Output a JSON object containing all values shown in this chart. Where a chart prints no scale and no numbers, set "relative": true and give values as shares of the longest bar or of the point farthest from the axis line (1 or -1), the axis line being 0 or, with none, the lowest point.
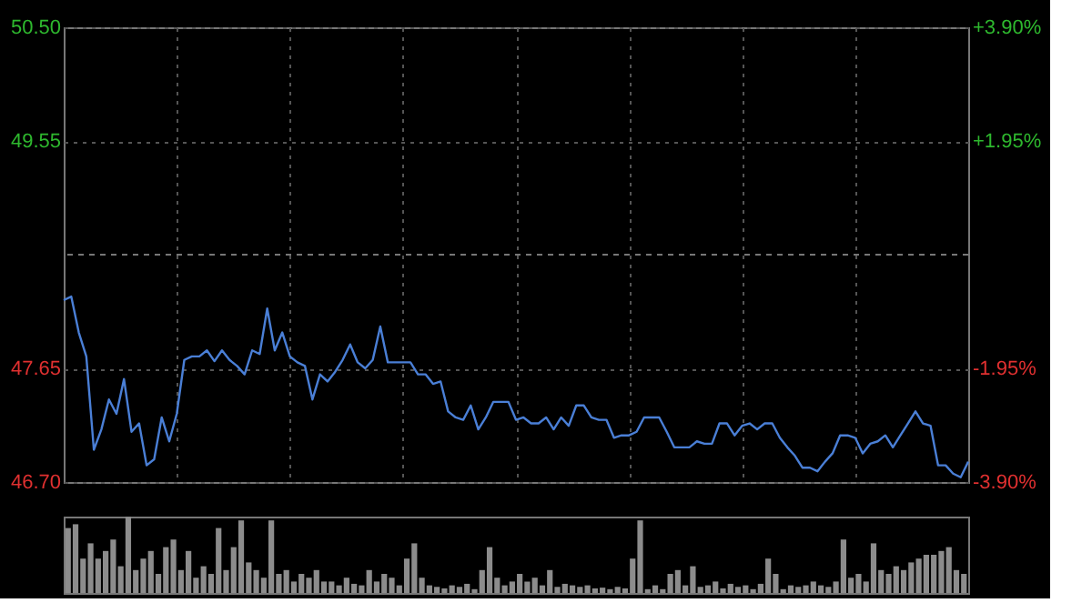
{
  "chart_data": [
    {
      "type": "line",
      "categories": [
        null,
        null,
        null,
        null,
        null,
        null,
        null,
        null,
        null,
        null,
        null,
        null,
        null,
        null,
        null,
        null,
        null,
        null,
        null,
        null,
        null,
        null,
        null,
        null,
        null,
        null,
        null,
        null,
        null,
        null,
        null,
        null,
        null,
        null,
        null,
        null,
        null,
        null,
        null,
        null,
        null,
        null,
        null,
        null,
        null,
        null,
        null,
        null,
        null,
        null,
        null,
        null,
        null,
        null,
        null,
        null,
        null,
        null,
        null,
        null,
        null,
        null,
        null,
        null,
        null,
        null,
        null,
        null,
        null,
        null,
        null,
        null,
        null,
        null,
        null,
        null,
        null,
        null,
        null,
        null,
        null,
        null,
        null,
        null,
        null,
        null,
        null,
        null,
        null,
        null,
        null,
        null,
        null,
        null,
        null,
        null,
        null,
        null,
        null,
        null,
        null,
        null,
        null,
        null,
        null,
        null,
        null,
        null,
        null,
        null,
        null,
        null,
        null,
        null,
        null,
        null,
        null,
        null,
        null,
        null,
        null
      ],
      "ylim": [
        46.7,
        50.5
      ],
      "yticks": [
        {
          "value": 46.7,
          "label": "46.70"
        },
        {
          "value": 47.65,
          "label": "47.65"
        },
        {
          "value": 49.55,
          "label": "49.55"
        },
        {
          "value": 50.5,
          "label": "50.50"
        }
      ],
      "y2lim": [
        -3.9,
        3.9
      ],
      "y2ticks": [
        {
          "value": -3.9,
          "label": "-3.90%"
        },
        {
          "value": -1.95,
          "label": "-1.95%"
        },
        {
          "value": 1.95,
          "label": "+1.95%"
        },
        {
          "value": 3.9,
          "label": "+3.90%"
        }
      ],
      "ref_lines": [
        {
          "axis": "y2",
          "value": 0,
          "color": "#777777",
          "line_style": "dashed"
        }
      ],
      "grid": true,
      "tick_labels": "y",
      "series": [
        {
          "color": "#4a7fd6",
          "values": [
            48.22,
            48.25,
            47.95,
            47.75,
            46.97,
            47.14,
            47.39,
            47.27,
            47.56,
            47.12,
            47.19,
            46.84,
            46.89,
            47.24,
            47.04,
            47.27,
            47.72,
            47.75,
            47.75,
            47.8,
            47.71,
            47.8,
            47.72,
            47.67,
            47.6,
            47.8,
            47.77,
            48.15,
            47.8,
            47.95,
            47.75,
            47.7,
            47.67,
            47.39,
            47.6,
            47.54,
            47.62,
            47.72,
            47.85,
            47.7,
            47.65,
            47.72,
            48.0,
            47.7,
            47.7,
            47.7,
            47.7,
            47.6,
            47.6,
            47.52,
            47.54,
            47.29,
            47.24,
            47.22,
            47.34,
            47.14,
            47.24,
            47.37,
            47.37,
            47.37,
            47.22,
            47.24,
            47.19,
            47.19,
            47.24,
            47.14,
            47.24,
            47.17,
            47.34,
            47.34,
            47.24,
            47.22,
            47.22,
            47.07,
            47.09,
            47.09,
            47.12,
            47.24,
            47.24,
            47.24,
            47.12,
            46.99,
            46.99,
            46.99,
            47.04,
            47.02,
            47.02,
            47.19,
            47.19,
            47.09,
            47.17,
            47.19,
            47.14,
            47.19,
            47.19,
            47.07,
            46.99,
            46.92,
            46.82,
            46.82,
            46.79,
            46.87,
            46.94,
            47.09,
            47.09,
            47.07,
            46.94,
            47.02,
            47.04,
            47.09,
            46.99,
            47.09,
            47.19,
            47.29,
            47.19,
            47.17,
            46.84,
            46.84,
            46.77,
            46.74,
            46.87
          ]
        }
      ]
    },
    {
      "type": "bar",
      "relative": true,
      "tick_labels": false,
      "grid": false,
      "categories": [
        null,
        null,
        null,
        null,
        null,
        null,
        null,
        null,
        null,
        null,
        null,
        null,
        null,
        null,
        null,
        null,
        null,
        null,
        null,
        null,
        null,
        null,
        null,
        null,
        null,
        null,
        null,
        null,
        null,
        null,
        null,
        null,
        null,
        null,
        null,
        null,
        null,
        null,
        null,
        null,
        null,
        null,
        null,
        null,
        null,
        null,
        null,
        null,
        null,
        null,
        null,
        null,
        null,
        null,
        null,
        null,
        null,
        null,
        null,
        null,
        null,
        null,
        null,
        null,
        null,
        null,
        null,
        null,
        null,
        null,
        null,
        null,
        null,
        null,
        null,
        null,
        null,
        null,
        null,
        null,
        null,
        null,
        null,
        null,
        null,
        null,
        null,
        null,
        null,
        null,
        null,
        null,
        null,
        null,
        null,
        null,
        null,
        null,
        null,
        null,
        null,
        null,
        null,
        null,
        null,
        null,
        null,
        null,
        null,
        null,
        null,
        null,
        null,
        null,
        null,
        null,
        null,
        null,
        null,
        null
      ],
      "series": [
        {
          "color": "#8c8c8c",
          "values": [
            0.85,
            0.9,
            0.45,
            0.65,
            0.45,
            0.55,
            0.7,
            0.35,
            1.0,
            0.3,
            0.45,
            0.55,
            0.25,
            0.6,
            0.7,
            0.3,
            0.55,
            0.2,
            0.35,
            0.25,
            0.85,
            0.3,
            0.6,
            0.95,
            0.4,
            0.3,
            0.2,
            0.95,
            0.25,
            0.3,
            0.15,
            0.25,
            0.2,
            0.3,
            0.15,
            0.15,
            0.1,
            0.2,
            0.12,
            0.1,
            0.3,
            0.15,
            0.25,
            0.2,
            0.1,
            0.45,
            0.65,
            0.2,
            0.1,
            0.08,
            0.06,
            0.1,
            0.08,
            0.12,
            0.05,
            0.3,
            0.6,
            0.2,
            0.1,
            0.15,
            0.25,
            0.15,
            0.2,
            0.1,
            0.3,
            0.08,
            0.12,
            0.1,
            0.08,
            0.1,
            0.06,
            0.07,
            0.05,
            0.08,
            0.06,
            0.45,
            0.95,
            0.05,
            0.1,
            0.05,
            0.25,
            0.3,
            0.1,
            0.35,
            0.08,
            0.1,
            0.15,
            0.06,
            0.12,
            0.08,
            0.1,
            0.05,
            0.12,
            0.45,
            0.25,
            0.05,
            0.1,
            0.08,
            0.1,
            0.15,
            0.1,
            0.08,
            0.15,
            0.7,
            0.2,
            0.25,
            0.15,
            0.65,
            0.3,
            0.25,
            0.35,
            0.3,
            0.4,
            0.45,
            0.5,
            0.5,
            0.55,
            0.6,
            0.3,
            0.25
          ]
        }
      ]
    }
  ]
}
